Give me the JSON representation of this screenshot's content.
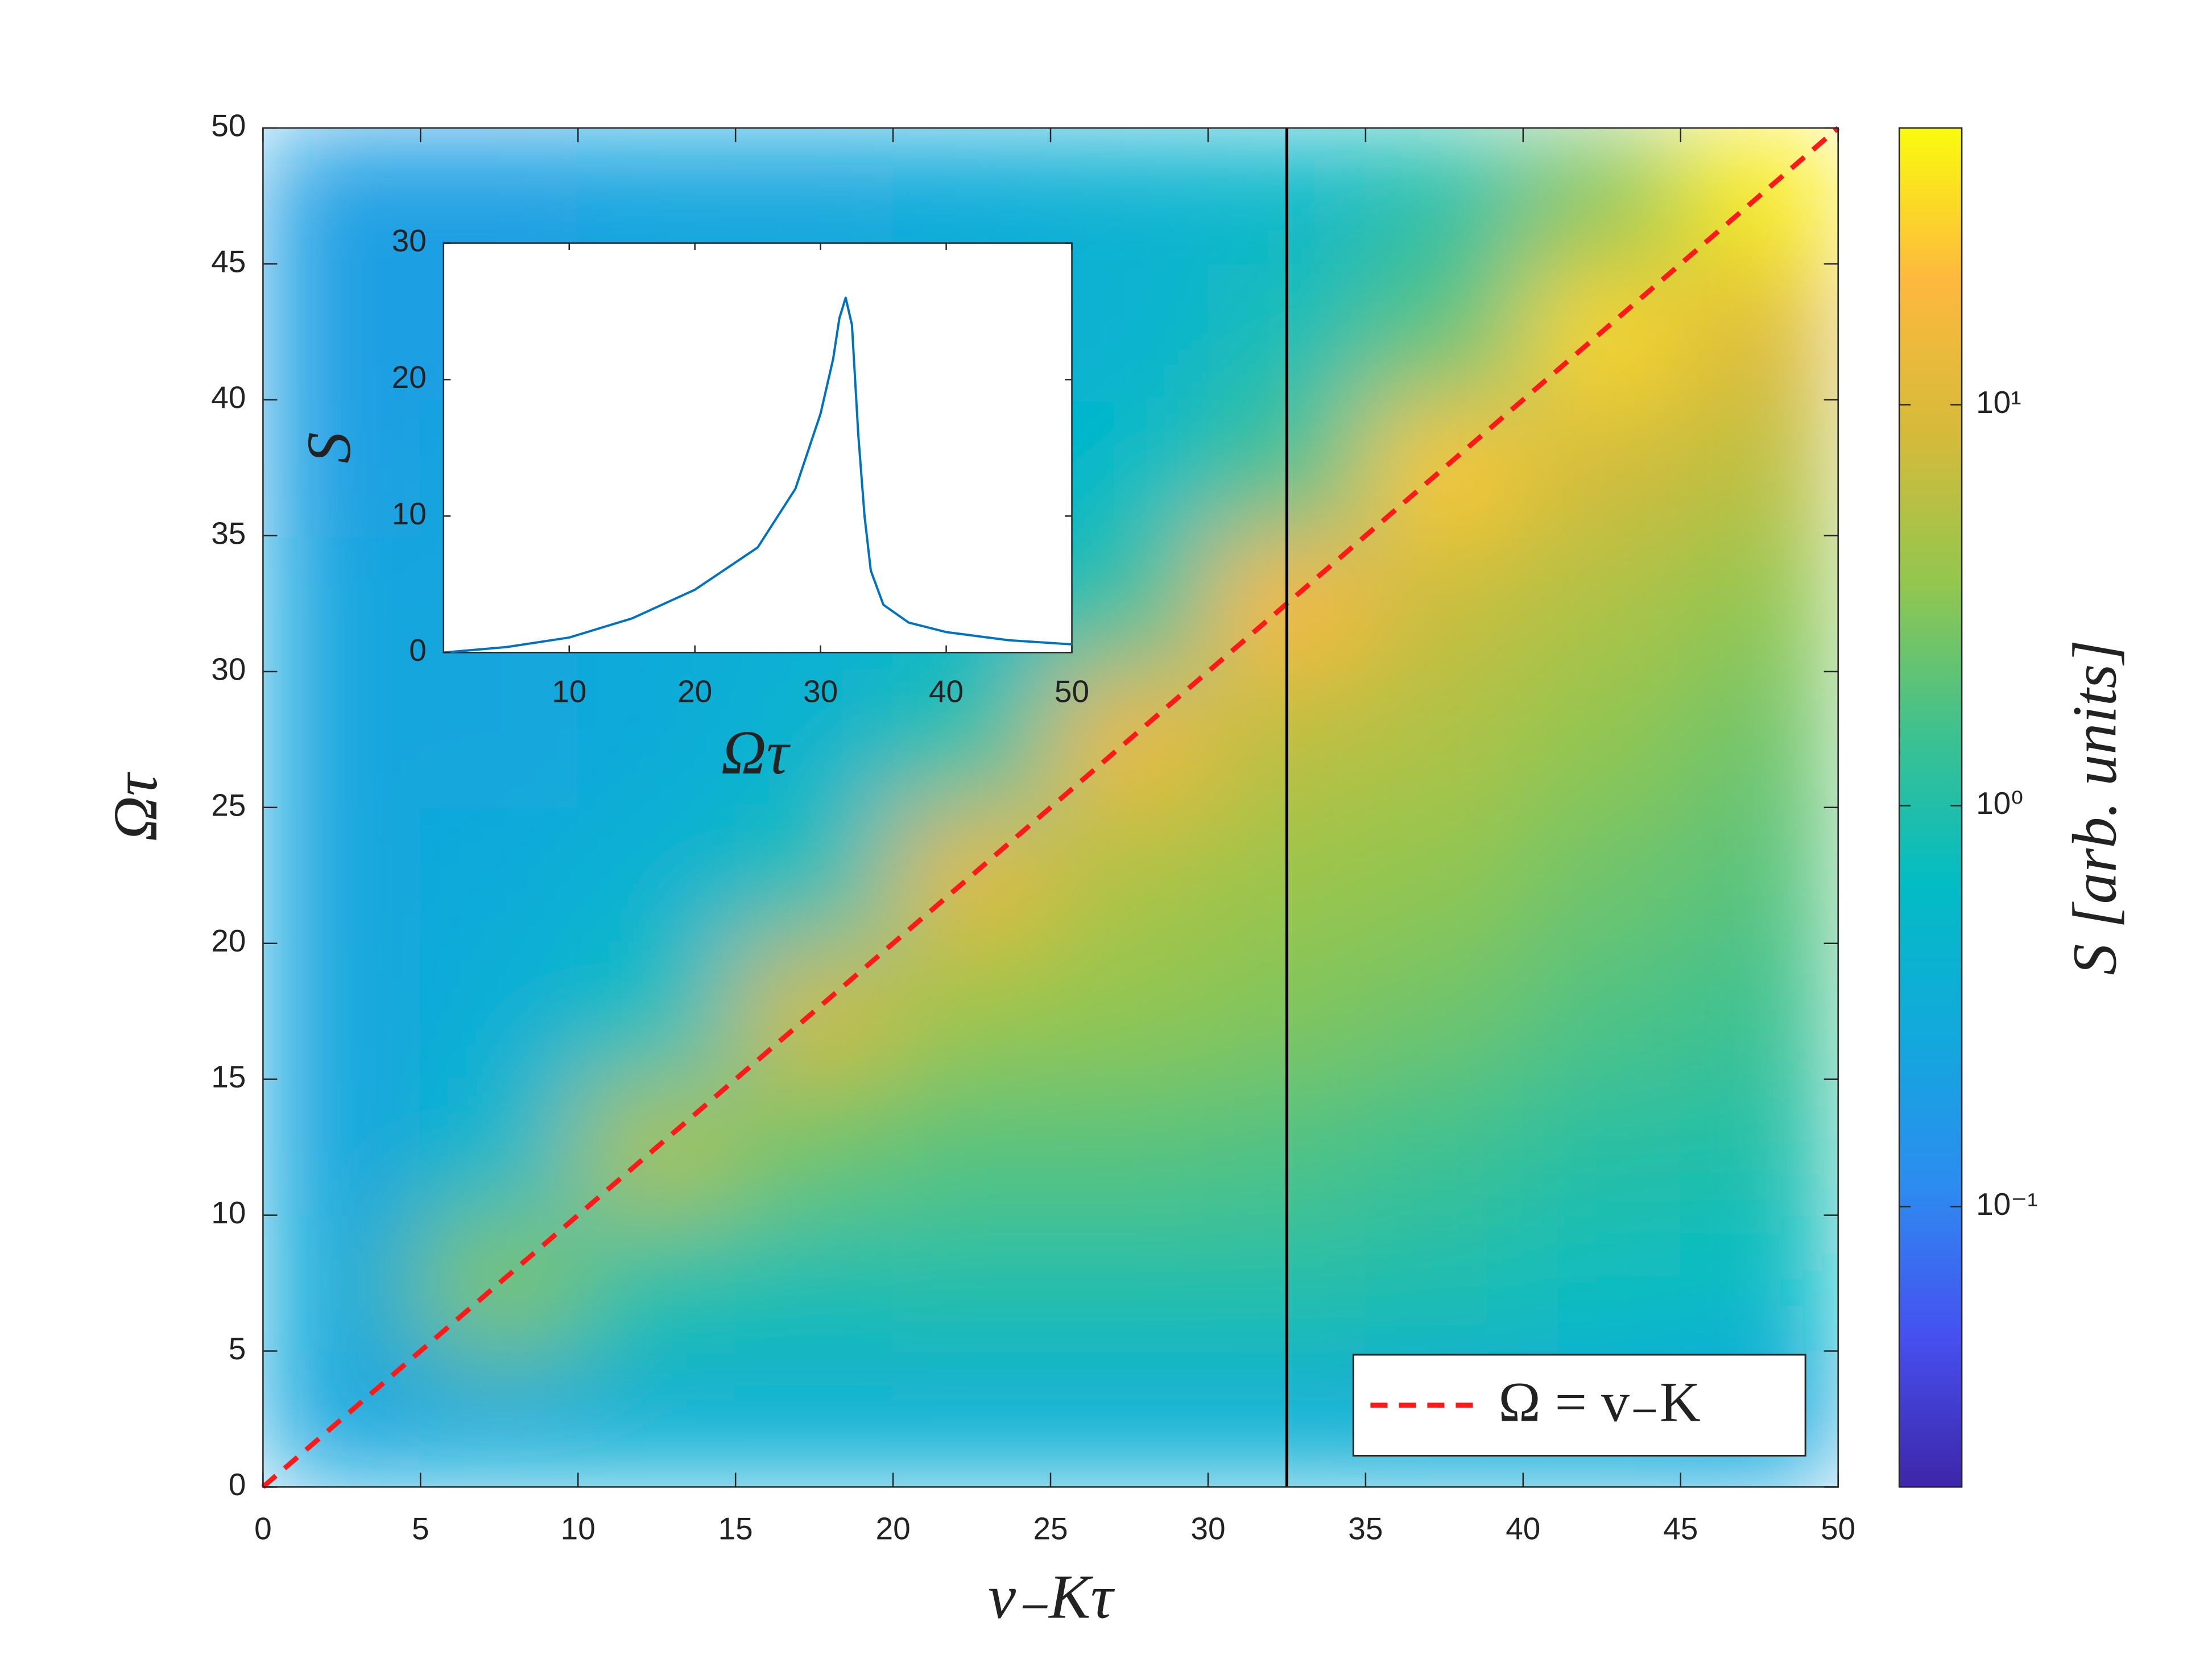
{
  "chart_data": [
    {
      "type": "heatmap",
      "xlabel": "v₋Kτ",
      "ylabel": "Ωτ",
      "xlim": [
        0,
        50
      ],
      "ylim": [
        0,
        50
      ],
      "xticks": [
        0,
        5,
        10,
        15,
        20,
        25,
        30,
        35,
        40,
        45,
        50
      ],
      "yticks": [
        0,
        5,
        10,
        15,
        20,
        25,
        30,
        35,
        40,
        45,
        50
      ],
      "x": [
        2.5,
        7.5,
        12.5,
        17.5,
        22.5,
        27.5,
        32.5,
        37.5,
        42.5,
        47.5
      ],
      "y": [
        2.5,
        7.5,
        12.5,
        17.5,
        22.5,
        27.5,
        32.5,
        37.5,
        42.5,
        47.5
      ],
      "z": [
        [
          0.25,
          0.3,
          0.35,
          0.35,
          0.35,
          0.35,
          0.35,
          0.3,
          0.3,
          0.25
        ],
        [
          0.3,
          3,
          1.0,
          0.9,
          1.0,
          1.0,
          1.0,
          0.9,
          0.7,
          0.6
        ],
        [
          0.25,
          0.5,
          5,
          2.5,
          2,
          2,
          1.8,
          1.5,
          1.1,
          1.0
        ],
        [
          0.25,
          0.35,
          0.7,
          8,
          4,
          3.5,
          3,
          2.5,
          1.8,
          1.5
        ],
        [
          0.25,
          0.3,
          0.4,
          0.8,
          12,
          5,
          4,
          3.5,
          2.5,
          2
        ],
        [
          0.25,
          0.25,
          0.3,
          0.45,
          1,
          15,
          6,
          5,
          3.5,
          2.5
        ],
        [
          0.25,
          0.25,
          0.3,
          0.35,
          0.5,
          1.2,
          20,
          7,
          5,
          3.5
        ],
        [
          0.2,
          0.25,
          0.25,
          0.3,
          0.35,
          0.6,
          1.5,
          25,
          8,
          6
        ],
        [
          0.2,
          0.2,
          0.25,
          0.3,
          0.35,
          0.4,
          0.8,
          2,
          30,
          10
        ],
        [
          0.2,
          0.2,
          0.25,
          0.25,
          0.3,
          0.4,
          0.5,
          1,
          3,
          40
        ]
      ],
      "colormap": [
        "#3e26a8",
        "#4650f0",
        "#2d8cf0",
        "#12a9dc",
        "#03bcc4",
        "#3fc18f",
        "#94c64e",
        "#d7ba3a",
        "#fdb93e",
        "#f9fb0e"
      ],
      "clim": [
        0.02,
        49
      ],
      "color_scale": "log",
      "colorbar_label": "S [arb. units]",
      "colorbar_ticks": [
        {
          "value": 0.1,
          "label": "10⁻¹"
        },
        {
          "value": 1,
          "label": "10⁰"
        },
        {
          "value": 10,
          "label": "10¹"
        }
      ],
      "vline": {
        "x": 32.5,
        "color": "#000000"
      },
      "series": [
        {
          "name": "Ω = v₋K",
          "color": "#ff1a1a",
          "style": "dashed",
          "x": [
            0,
            50
          ],
          "values": [
            0,
            50
          ]
        }
      ],
      "legend": "lower right"
    },
    {
      "type": "line",
      "xlabel": "Ωτ",
      "ylabel": "S",
      "xlim": [
        0,
        50
      ],
      "ylim": [
        0,
        30
      ],
      "xticks": [
        10,
        20,
        30,
        40,
        50
      ],
      "yticks": [
        0,
        10,
        20,
        30
      ],
      "series": [
        {
          "color": "#0072bd",
          "x": [
            0,
            5,
            10,
            15,
            20,
            25,
            28,
            30,
            31,
            31.5,
            32,
            32.5,
            33,
            33.5,
            34,
            35,
            37,
            40,
            45,
            50
          ],
          "values": [
            0,
            0.4,
            1.1,
            2.5,
            4.6,
            7.7,
            12,
            17.5,
            21.5,
            24.5,
            26,
            24,
            16,
            10,
            6,
            3.5,
            2.2,
            1.5,
            0.9,
            0.6
          ]
        }
      ]
    }
  ]
}
